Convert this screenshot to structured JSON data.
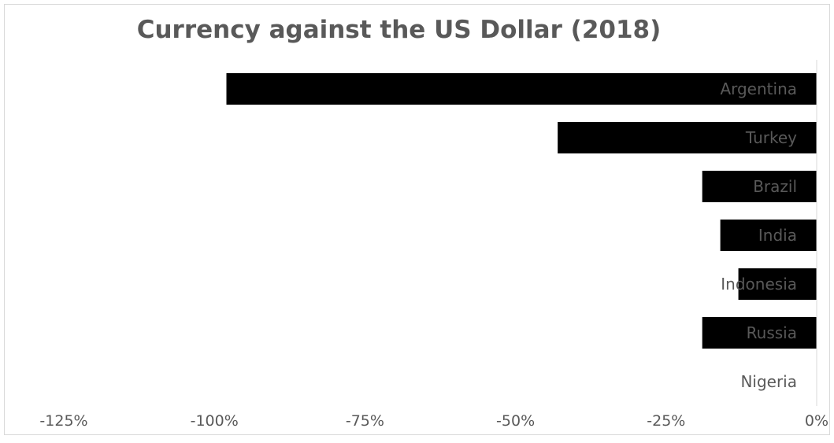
{
  "chart_data": {
    "type": "bar",
    "orientation": "horizontal",
    "title": "Currency against the US Dollar (2018)",
    "xlabel": "",
    "ylabel": "",
    "categories": [
      "Argentina",
      "Turkey",
      "Brazil",
      "India",
      "Indonesia",
      "Russia",
      "Nigeria"
    ],
    "values": [
      -98,
      -43,
      -19,
      -16,
      -13,
      -19,
      0
    ],
    "xlim": [
      -125,
      0
    ],
    "xticks": [
      -125,
      -100,
      -75,
      -50,
      -25,
      0
    ],
    "xtick_labels": [
      "-125%",
      "-100%",
      "-75%",
      "-50%",
      "-25%",
      "0%"
    ],
    "grid": false,
    "legend": "none",
    "colors": {
      "bar": "#000000",
      "text": "#595959",
      "axis": "#d9d9d9"
    }
  }
}
